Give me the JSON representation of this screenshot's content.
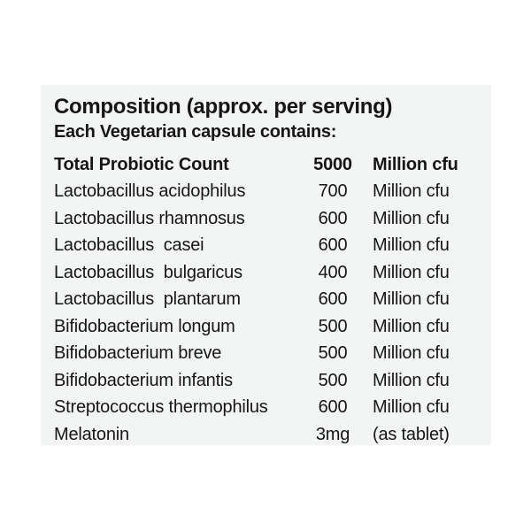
{
  "page": {
    "background_color": "#ffffff"
  },
  "label_panel": {
    "background_color": "#f3f4f4",
    "text_color": "#161616",
    "title": "Composition (approx. per serving)",
    "subtitle": "Each Vegetarian capsule contains:"
  },
  "composition_table": {
    "rows": [
      {
        "name": "Total Probiotic Count",
        "value": "5000",
        "unit": "Million cfu",
        "bold": true
      },
      {
        "name": "Lactobacillus acidophilus",
        "value": "700",
        "unit": "Million cfu",
        "bold": false
      },
      {
        "name": "Lactobacillus rhamnosus",
        "value": "600",
        "unit": "Million cfu",
        "bold": false
      },
      {
        "name": "Lactobacillus  casei",
        "value": "600",
        "unit": "Million cfu",
        "bold": false
      },
      {
        "name": "Lactobacillus  bulgaricus",
        "value": "400",
        "unit": "Million cfu",
        "bold": false
      },
      {
        "name": "Lactobacillus  plantarum",
        "value": "600",
        "unit": "Million cfu",
        "bold": false
      },
      {
        "name": "Bifidobacterium longum",
        "value": "500",
        "unit": "Million cfu",
        "bold": false
      },
      {
        "name": "Bifidobacterium breve",
        "value": "500",
        "unit": "Million cfu",
        "bold": false
      },
      {
        "name": "Bifidobacterium infantis",
        "value": "500",
        "unit": "Million cfu",
        "bold": false
      },
      {
        "name": "Streptococcus thermophilus",
        "value": "600",
        "unit": "Million cfu",
        "bold": false
      },
      {
        "name": "Melatonin",
        "value": "3mg",
        "unit": "(as tablet)",
        "bold": false
      }
    ]
  }
}
